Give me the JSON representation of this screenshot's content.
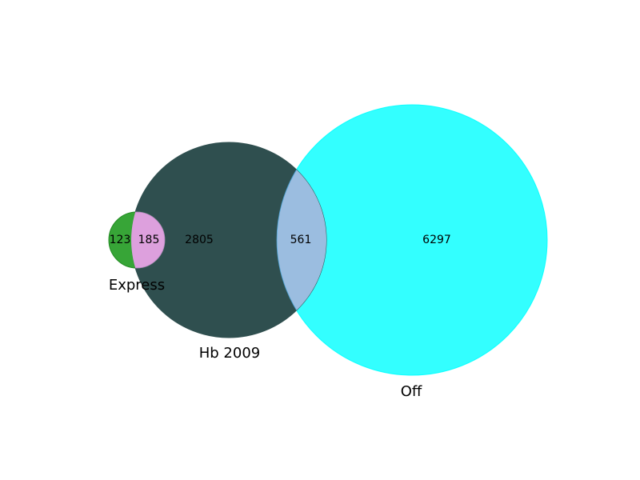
{
  "sets": {
    "express": {
      "label": "Express",
      "only_count": "123",
      "color": "#2ca02c"
    },
    "hb": {
      "label": "Hb 2009",
      "only_count": "2805",
      "color": "#2f4f4f"
    },
    "off": {
      "label": "Off",
      "only_count": "6297",
      "color": "#00ffff"
    }
  },
  "intersections": {
    "express_hb": {
      "count": "185",
      "color": "#dda0dd"
    },
    "hb_off": {
      "count": "561",
      "color": "#9bbde0"
    }
  }
}
